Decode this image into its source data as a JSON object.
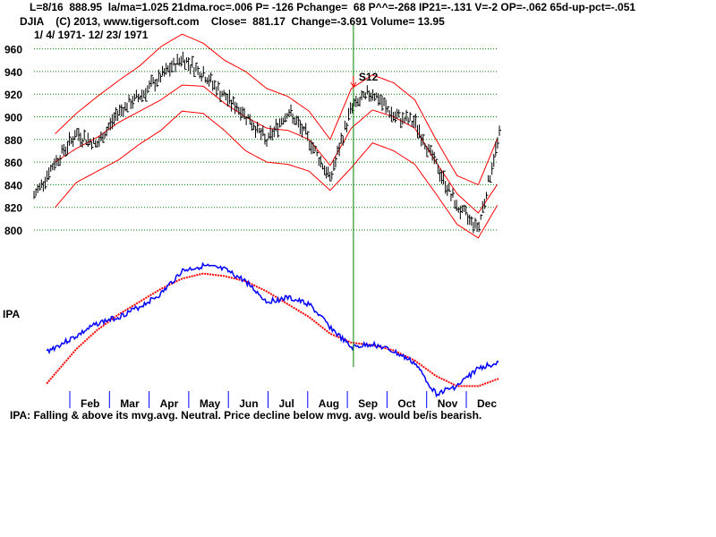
{
  "header": {
    "line1": "L=8/16  888.95  la/ma=1.025 21dma.roc=.006 P= -126 Pchange=  68 P^^=-268 IP21=-.131 V=-2 OP=-.062 65d-up-pct=-.051",
    "line2": "DJIA    (C) 2013, www.tigersoft.com    Close=  881.17  Change=-3.691 Volume= 13.95",
    "line3": "1/ 4/ 1971- 12/ 23/ 1971"
  },
  "footer_text": "IPA: Falling & above its mvg.avg. Neutral. Price decline below mvg. avg. would be/is bearish.",
  "colors": {
    "price_bars": "#000000",
    "bands": "#ff0000",
    "ipa_line": "#0000ff",
    "ipa_mavg": "#ff0000",
    "grid": "#008000",
    "signal_line": "#008000",
    "signal_label": "#000000",
    "signal_arrow": "#ff0000"
  },
  "chart_data": [
    {
      "type": "line",
      "title": "",
      "ylim": [
        790,
        975
      ],
      "y_ticks": [
        "960",
        "940",
        "920",
        "900",
        "880",
        "860",
        "840",
        "820",
        "800"
      ],
      "grid": true,
      "x": [
        1.0,
        1.5,
        2.0,
        2.5,
        3.0,
        3.5,
        4.0,
        4.5,
        5.0,
        5.5,
        6.0,
        6.5,
        7.0,
        7.5,
        8.0,
        8.5,
        9.0,
        9.5,
        10.0,
        10.5,
        11.0,
        11.5,
        12.0
      ],
      "series": [
        {
          "kind": "price",
          "values": [
            830,
            860,
            885,
            875,
            905,
            918,
            935,
            952,
            938,
            918,
            902,
            878,
            905,
            880,
            845,
            908,
            922,
            900,
            895,
            858,
            820,
            802,
            885
          ]
        },
        {
          "kind": "upper-band",
          "values": [
            null,
            885,
            903,
            918,
            932,
            945,
            962,
            973,
            965,
            950,
            940,
            925,
            918,
            905,
            880,
            925,
            937,
            930,
            915,
            880,
            848,
            840,
            885
          ]
        },
        {
          "kind": "middle-band",
          "values": [
            null,
            860,
            872,
            882,
            895,
            905,
            915,
            928,
            927,
            912,
            900,
            890,
            888,
            880,
            857,
            890,
            906,
            900,
            890,
            860,
            832,
            815,
            843
          ]
        },
        {
          "kind": "lower-band",
          "values": [
            null,
            820,
            842,
            852,
            862,
            876,
            888,
            905,
            903,
            888,
            870,
            860,
            858,
            852,
            835,
            855,
            877,
            870,
            858,
            832,
            805,
            793,
            825
          ]
        }
      ],
      "signal": {
        "label": "S12",
        "x": 8.55
      }
    },
    {
      "type": "line",
      "ylabel": "IPA",
      "x_ticks": [
        "Feb",
        "Mar",
        "Apr",
        "May",
        "Jun",
        "Jul",
        "Aug",
        "Sep",
        "Oct",
        "Nov",
        "Dec"
      ],
      "x": [
        1.3,
        2.0,
        2.5,
        3.0,
        3.5,
        4.0,
        4.5,
        5.0,
        5.5,
        6.0,
        6.5,
        7.0,
        7.5,
        8.0,
        8.5,
        9.0,
        9.5,
        10.0,
        10.5,
        11.0,
        11.5,
        12.0
      ],
      "series": [
        {
          "kind": "ipa",
          "values": [
            0.33,
            0.45,
            0.55,
            0.6,
            0.68,
            0.78,
            0.96,
            1.0,
            0.97,
            0.88,
            0.72,
            0.75,
            0.7,
            0.52,
            0.36,
            0.39,
            0.33,
            0.24,
            0.0,
            0.06,
            0.2,
            0.25
          ]
        },
        {
          "kind": "ipa-mvg-avg",
          "values": [
            0.08,
            0.35,
            0.5,
            0.62,
            0.72,
            0.82,
            0.9,
            0.94,
            0.92,
            0.88,
            0.8,
            0.7,
            0.6,
            0.47,
            0.4,
            0.38,
            0.34,
            0.26,
            0.14,
            0.06,
            0.06,
            0.12
          ]
        }
      ]
    }
  ]
}
